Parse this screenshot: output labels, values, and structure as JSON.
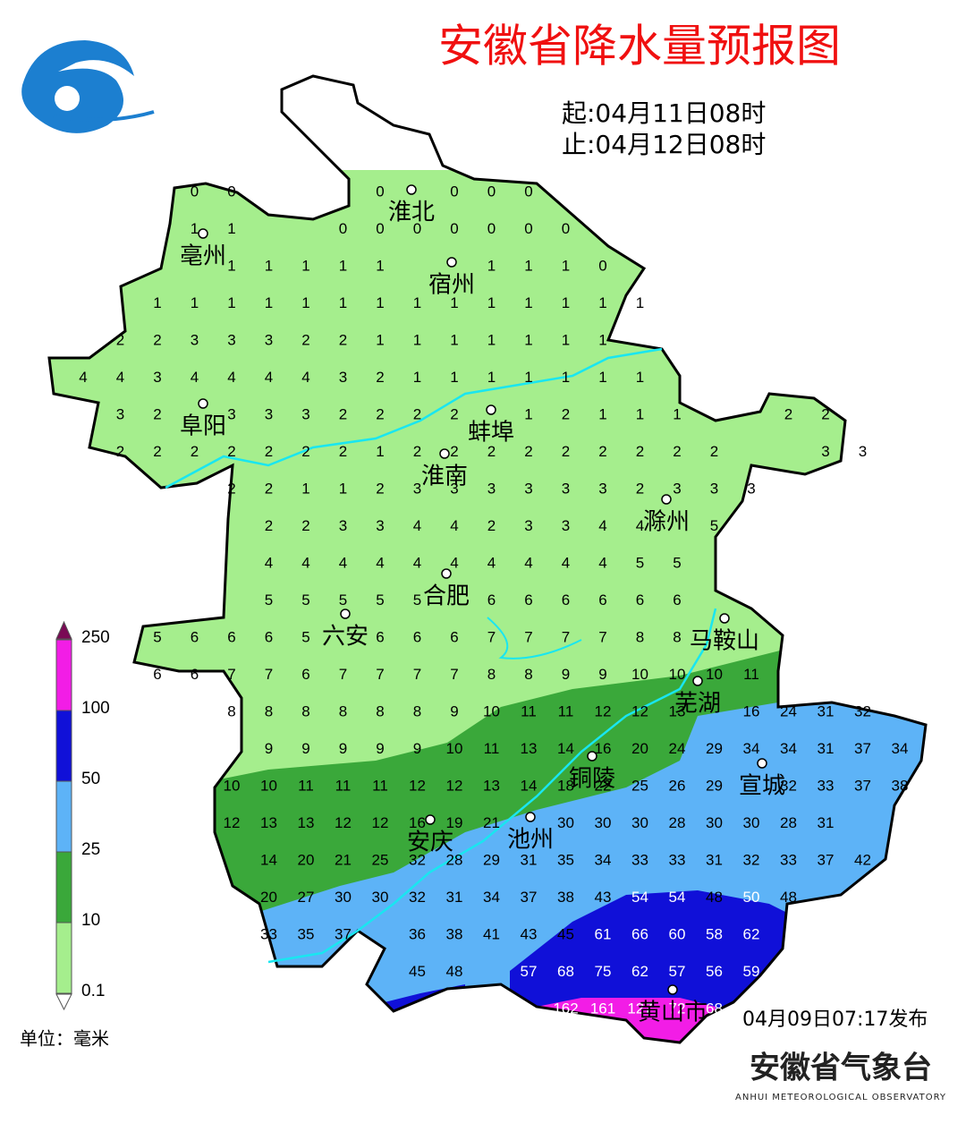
{
  "header": {
    "title": "安徽省降水量预报图",
    "start": "起:04月11日08时",
    "end": "止:04月12日08时"
  },
  "cities": [
    "淮北",
    "亳州",
    "宿州",
    "阜阳",
    "蚌埠",
    "淮南",
    "滁州",
    "合肥",
    "六安",
    "马鞍山",
    "芜湖",
    "铜陵",
    "宣城",
    "安庆",
    "池州",
    "黄山市"
  ],
  "grid": {
    "rows": [
      [
        null,
        null,
        null,
        0,
        0,
        null,
        null,
        null,
        0,
        null,
        0,
        0,
        0
      ],
      [
        null,
        null,
        null,
        1,
        1,
        null,
        null,
        0,
        0,
        0,
        0,
        0,
        0,
        0
      ],
      [
        null,
        null,
        null,
        null,
        1,
        1,
        1,
        1,
        1,
        null,
        null,
        1,
        1,
        1,
        0
      ],
      [
        null,
        null,
        1,
        1,
        1,
        1,
        1,
        1,
        1,
        1,
        1,
        1,
        1,
        1,
        1,
        1
      ],
      [
        null,
        2,
        2,
        3,
        3,
        3,
        2,
        2,
        1,
        1,
        1,
        1,
        1,
        1,
        1
      ],
      [
        4,
        4,
        3,
        4,
        4,
        4,
        4,
        3,
        2,
        1,
        1,
        1,
        1,
        1,
        1,
        1
      ],
      [
        null,
        3,
        2,
        null,
        3,
        3,
        3,
        2,
        2,
        2,
        2,
        null,
        1,
        2,
        1,
        1,
        1,
        null,
        null,
        2,
        2
      ],
      [
        null,
        2,
        2,
        2,
        2,
        2,
        2,
        2,
        1,
        2,
        2,
        2,
        2,
        2,
        2,
        2,
        2,
        2,
        null,
        null,
        3,
        3
      ],
      [
        null,
        null,
        null,
        null,
        2,
        2,
        1,
        1,
        2,
        3,
        3,
        3,
        3,
        3,
        3,
        2,
        3,
        3,
        3
      ],
      [
        null,
        null,
        null,
        null,
        null,
        2,
        2,
        3,
        3,
        4,
        4,
        2,
        3,
        3,
        4,
        4,
        null,
        5
      ],
      [
        null,
        null,
        null,
        null,
        null,
        4,
        4,
        4,
        4,
        4,
        4,
        4,
        4,
        4,
        4,
        5,
        5
      ],
      [
        null,
        null,
        null,
        null,
        null,
        5,
        5,
        5,
        5,
        5,
        null,
        6,
        6,
        6,
        6,
        6,
        6
      ],
      [
        null,
        null,
        5,
        6,
        6,
        6,
        5,
        null,
        6,
        6,
        6,
        7,
        7,
        7,
        7,
        8,
        8
      ],
      [
        null,
        null,
        6,
        6,
        7,
        7,
        6,
        7,
        7,
        7,
        7,
        8,
        8,
        9,
        9,
        10,
        10,
        10,
        11
      ],
      [
        null,
        null,
        null,
        null,
        8,
        8,
        8,
        8,
        8,
        8,
        9,
        10,
        11,
        11,
        12,
        12,
        13,
        null,
        16,
        24,
        31,
        32
      ],
      [
        null,
        null,
        null,
        null,
        null,
        9,
        9,
        9,
        9,
        9,
        10,
        11,
        13,
        14,
        16,
        20,
        24,
        29,
        34,
        34,
        31,
        37,
        34
      ],
      [
        null,
        null,
        null,
        null,
        10,
        10,
        11,
        11,
        11,
        12,
        12,
        13,
        14,
        18,
        22,
        25,
        26,
        29,
        null,
        32,
        33,
        37,
        38
      ],
      [
        null,
        null,
        null,
        null,
        12,
        13,
        13,
        12,
        12,
        16,
        19,
        21,
        null,
        30,
        30,
        30,
        28,
        30,
        30,
        28,
        31
      ],
      [
        null,
        null,
        null,
        null,
        null,
        14,
        20,
        21,
        25,
        32,
        28,
        29,
        31,
        35,
        34,
        33,
        33,
        31,
        32,
        33,
        37,
        42
      ],
      [
        null,
        null,
        null,
        null,
        null,
        20,
        27,
        30,
        30,
        32,
        31,
        34,
        37,
        38,
        43,
        54,
        54,
        48,
        50,
        48
      ],
      [
        null,
        null,
        null,
        null,
        null,
        33,
        35,
        37,
        null,
        36,
        38,
        41,
        43,
        45,
        61,
        66,
        60,
        58,
        62
      ],
      [
        null,
        null,
        null,
        null,
        null,
        null,
        null,
        null,
        null,
        45,
        48,
        null,
        57,
        68,
        75,
        62,
        57,
        56,
        59
      ],
      [
        null,
        null,
        null,
        null,
        null,
        null,
        null,
        null,
        null,
        null,
        null,
        null,
        null,
        162,
        161,
        127,
        72,
        68
      ]
    ]
  },
  "legend": {
    "levels": [
      0.1,
      10,
      25,
      50,
      100,
      250
    ],
    "colors": [
      "#a5ee8d",
      "#3aa83a",
      "#5db3f7",
      "#1010d8",
      "#f21de6"
    ],
    "unit": "单位：毫米"
  },
  "footer": {
    "issued": "04月09日07:17发布",
    "org": "安徽省气象台",
    "org_en": "ANHUI METEOROLOGICAL OBSERVATORY"
  }
}
